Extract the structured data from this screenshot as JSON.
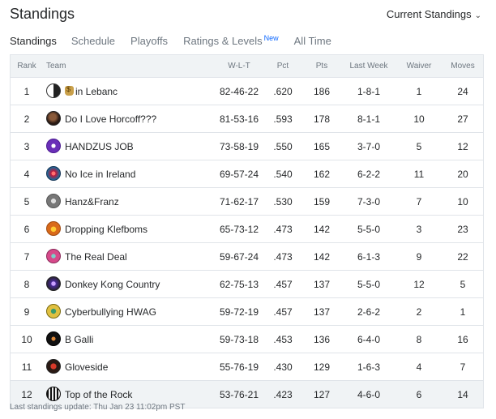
{
  "header": {
    "title": "Standings",
    "view_select": "Current Standings"
  },
  "tabs": [
    {
      "label": "Standings",
      "active": true
    },
    {
      "label": "Schedule"
    },
    {
      "label": "Playoffs"
    },
    {
      "label": "Ratings & Levels",
      "badge": "New"
    },
    {
      "label": "All Time"
    }
  ],
  "columns": {
    "rank": "Rank",
    "team": "Team",
    "wlt": "W-L-T",
    "pct": "Pct",
    "pts": "Pts",
    "last_week": "Last Week",
    "waiver": "Waiver",
    "moves": "Moves"
  },
  "rows": [
    {
      "rank": "1",
      "team": "in Lebanc",
      "wlt": "82-46-22",
      "pct": ".620",
      "pts": "186",
      "last_week": "1-8-1",
      "waiver": "1",
      "moves": "24",
      "logo_icon": "yin-yang-icon"
    },
    {
      "rank": "2",
      "team": "Do I Love Horcoff???",
      "wlt": "81-53-16",
      "pct": ".593",
      "pts": "178",
      "last_week": "8-1-1",
      "waiver": "10",
      "moves": "27",
      "logo_icon": "team-logo-icon"
    },
    {
      "rank": "3",
      "team": "HANDZUS JOB",
      "wlt": "73-58-19",
      "pct": ".550",
      "pts": "165",
      "last_week": "3-7-0",
      "waiver": "5",
      "moves": "12",
      "logo_icon": "jersey-icon"
    },
    {
      "rank": "4",
      "team": "No Ice in Ireland",
      "wlt": "69-57-24",
      "pct": ".540",
      "pts": "162",
      "last_week": "6-2-2",
      "waiver": "11",
      "moves": "20",
      "logo_icon": "team-logo-icon"
    },
    {
      "rank": "5",
      "team": "Hanz&Franz",
      "wlt": "71-62-17",
      "pct": ".530",
      "pts": "159",
      "last_week": "7-3-0",
      "waiver": "7",
      "moves": "10",
      "logo_icon": "team-logo-icon"
    },
    {
      "rank": "6",
      "team": "Dropping Klefboms",
      "wlt": "65-73-12",
      "pct": ".473",
      "pts": "142",
      "last_week": "5-5-0",
      "waiver": "3",
      "moves": "23",
      "logo_icon": "team-logo-icon"
    },
    {
      "rank": "7",
      "team": "The Real Deal",
      "wlt": "59-67-24",
      "pct": ".473",
      "pts": "142",
      "last_week": "6-1-3",
      "waiver": "9",
      "moves": "22",
      "logo_icon": "team-logo-icon"
    },
    {
      "rank": "8",
      "team": "Donkey Kong Country",
      "wlt": "62-75-13",
      "pct": ".457",
      "pts": "137",
      "last_week": "5-5-0",
      "waiver": "12",
      "moves": "5",
      "logo_icon": "team-logo-icon"
    },
    {
      "rank": "9",
      "team": "Cyberbullying HWAG",
      "wlt": "59-72-19",
      "pct": ".457",
      "pts": "137",
      "last_week": "2-6-2",
      "waiver": "2",
      "moves": "1",
      "logo_icon": "team-logo-icon"
    },
    {
      "rank": "10",
      "team": "B Galli",
      "wlt": "59-73-18",
      "pct": ".453",
      "pts": "136",
      "last_week": "6-4-0",
      "waiver": "8",
      "moves": "16",
      "logo_icon": "team-logo-icon"
    },
    {
      "rank": "11",
      "team": "Gloveside",
      "wlt": "55-76-19",
      "pct": ".430",
      "pts": "129",
      "last_week": "1-6-3",
      "waiver": "4",
      "moves": "7",
      "logo_icon": "team-logo-icon"
    },
    {
      "rank": "12",
      "team": "Top of the Rock",
      "wlt": "53-76-21",
      "pct": ".423",
      "pts": "127",
      "last_week": "4-6-0",
      "waiver": "6",
      "moves": "14",
      "logo_icon": "team-logo-icon"
    }
  ],
  "footer": "Last standings update: Thu Jan 23 11:02pm PST"
}
